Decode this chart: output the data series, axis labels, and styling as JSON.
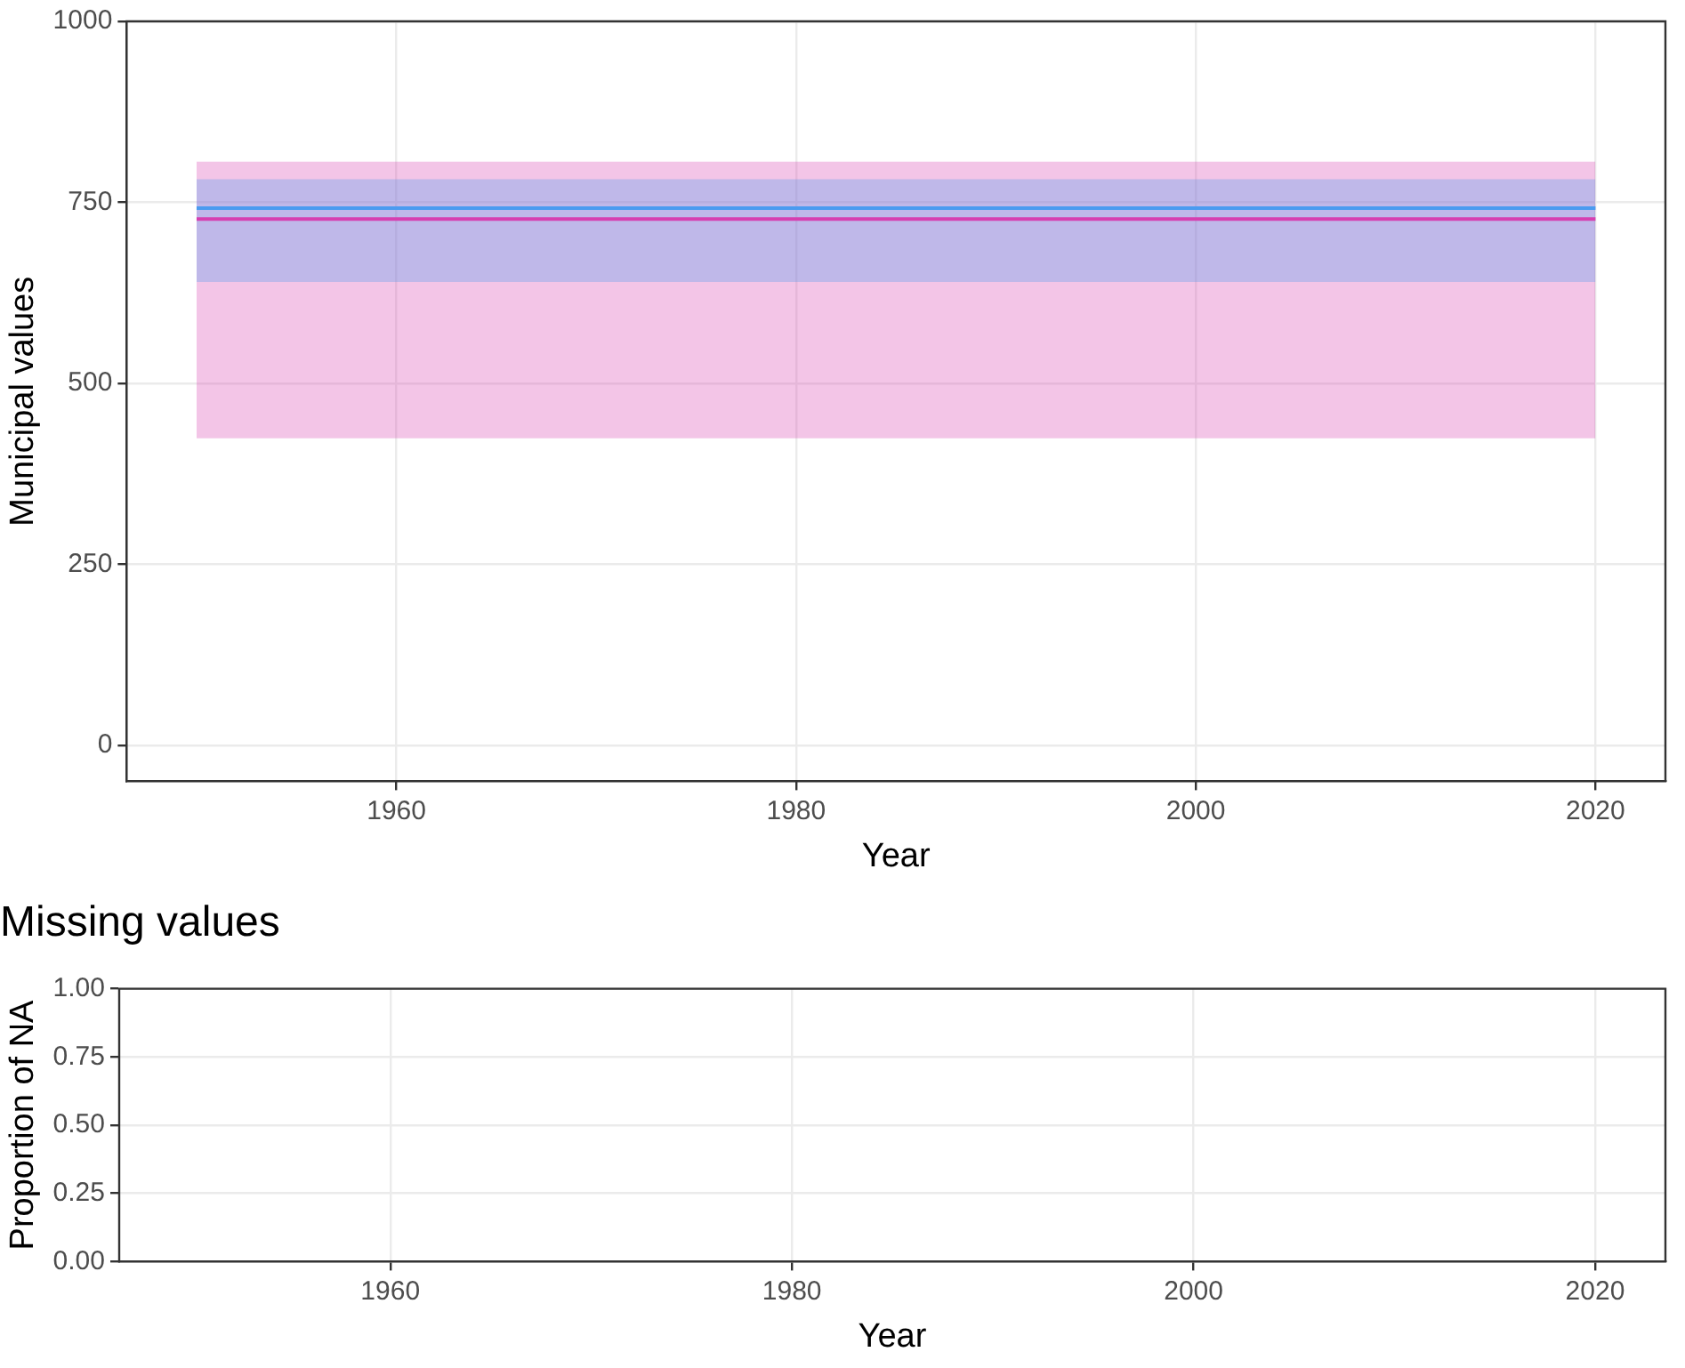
{
  "chart_data": [
    {
      "type": "line",
      "xlabel": "Year",
      "ylabel": "Municipal values",
      "x": [
        1950,
        2020
      ],
      "series": [
        {
          "color": "#4a9bf0",
          "values": [
            742,
            742
          ],
          "lower": [
            640,
            640
          ],
          "upper": [
            782,
            782
          ]
        },
        {
          "color": "#d63fb0",
          "values": [
            727,
            727
          ],
          "lower": [
            424,
            424
          ],
          "upper": [
            806,
            806
          ]
        }
      ],
      "xlim": [
        1946.5,
        2023.5
      ],
      "xticks": [
        1960,
        1980,
        2000,
        2020
      ],
      "ylim": [
        -50,
        1000
      ],
      "yticks": [
        0,
        250,
        500,
        750,
        1000
      ],
      "grid": true
    },
    {
      "type": "line",
      "title": "Missing values",
      "xlabel": "Year",
      "ylabel": "Proportion of NA",
      "xlim": [
        1946.5,
        2023.5
      ],
      "xticks": [
        1960,
        1980,
        2000,
        2020
      ],
      "ylim": [
        0,
        1
      ],
      "yticks": [
        {
          "value": 0,
          "label": "0.00"
        },
        {
          "value": 0.25,
          "label": "0.25"
        },
        {
          "value": 0.5,
          "label": "0.50"
        },
        {
          "value": 0.75,
          "label": "0.75"
        },
        {
          "value": 1,
          "label": "1.00"
        }
      ],
      "grid": true
    }
  ]
}
